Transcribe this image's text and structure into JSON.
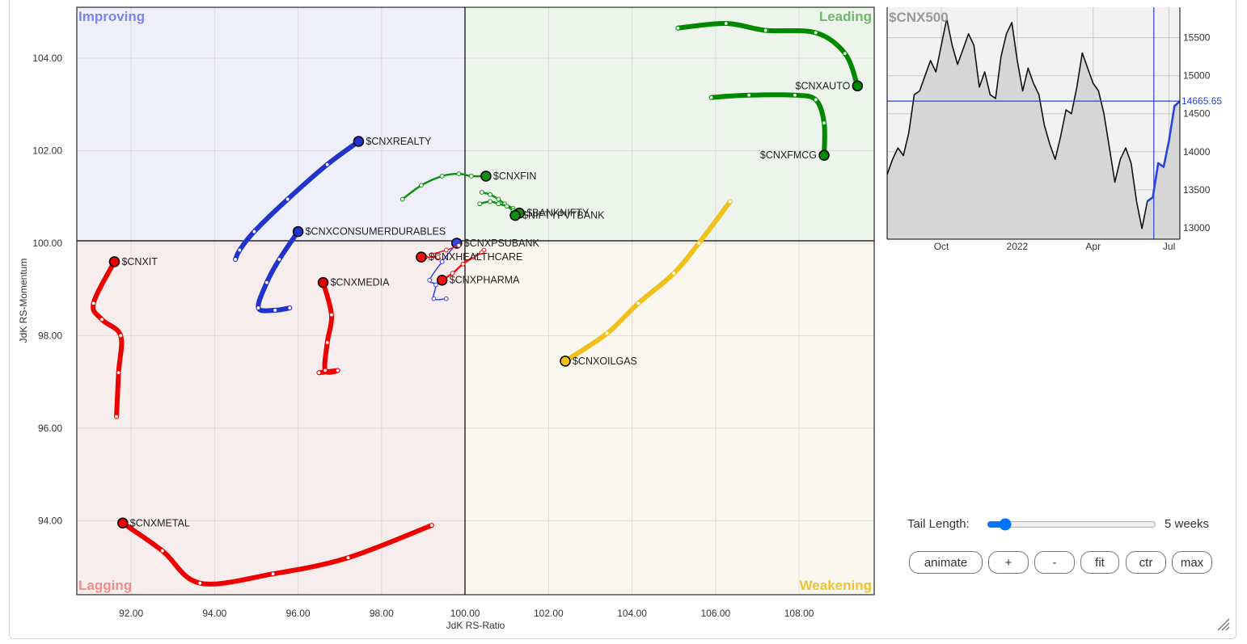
{
  "chart_data": {
    "type": "scatter",
    "subtype": "relative-rotation-graph",
    "xlabel": "JdK RS-Ratio",
    "ylabel": "JdK RS-Momentum",
    "xlim": [
      90.7,
      109.8
    ],
    "ylim": [
      92.4,
      105.1
    ],
    "xticks": [
      "92.00",
      "94.00",
      "96.00",
      "98.00",
      "100.00",
      "102.00",
      "104.00",
      "106.00",
      "108.00"
    ],
    "yticks": [
      "94.00",
      "96.00",
      "98.00",
      "100.00",
      "102.00",
      "104.00"
    ],
    "quadrants": [
      {
        "name": "Improving",
        "position": "top-left",
        "color": "#7b86e8",
        "fill": "#eeeff9"
      },
      {
        "name": "Leading",
        "position": "top-right",
        "color": "#72b86a",
        "fill": "#ecf4ec"
      },
      {
        "name": "Lagging",
        "position": "bottom-left",
        "color": "#f08c8c",
        "fill": "#f8eded"
      },
      {
        "name": "Weakening",
        "position": "bottom-right",
        "color": "#efc32e",
        "fill": "#faf7ef"
      }
    ],
    "series": [
      {
        "name": "$CNXAUTO",
        "color": "#008800",
        "width": 6,
        "label_side": "left",
        "points": [
          [
            105.1,
            104.65
          ],
          [
            106.25,
            104.75
          ],
          [
            107.2,
            104.6
          ],
          [
            108.4,
            104.55
          ],
          [
            109.1,
            104.1
          ],
          [
            109.4,
            103.4
          ]
        ]
      },
      {
        "name": "$CNXFMCG",
        "color": "#008800",
        "width": 6,
        "label_side": "left",
        "points": [
          [
            105.9,
            103.15
          ],
          [
            106.8,
            103.2
          ],
          [
            107.9,
            103.2
          ],
          [
            108.4,
            103.1
          ],
          [
            108.6,
            102.6
          ],
          [
            108.6,
            101.9
          ]
        ]
      },
      {
        "name": "$CNXFIN",
        "color": "#109010",
        "width": 2.5,
        "label_side": "right",
        "points": [
          [
            98.5,
            100.95
          ],
          [
            98.95,
            101.25
          ],
          [
            99.45,
            101.45
          ],
          [
            99.85,
            101.5
          ],
          [
            100.15,
            101.45
          ],
          [
            100.5,
            101.45
          ]
        ]
      },
      {
        "name": "$BANKNIFTY",
        "color": "#109010",
        "width": 2.5,
        "label_side": "right",
        "points": [
          [
            100.4,
            101.1
          ],
          [
            100.6,
            101.05
          ],
          [
            100.8,
            100.95
          ],
          [
            100.95,
            100.85
          ],
          [
            101.15,
            100.75
          ],
          [
            101.3,
            100.65
          ]
        ]
      },
      {
        "name": "$NIFTYPVTBANK",
        "color": "#109010",
        "width": 2.5,
        "label_side": "right",
        "points": [
          [
            100.35,
            100.85
          ],
          [
            100.6,
            100.9
          ],
          [
            100.8,
            100.85
          ],
          [
            101.0,
            100.8
          ],
          [
            101.15,
            100.7
          ],
          [
            101.2,
            100.6
          ]
        ]
      },
      {
        "name": "$CNXREALTY",
        "color": "#2233cc",
        "width": 6,
        "label_side": "right",
        "points": [
          [
            94.5,
            99.65
          ],
          [
            94.6,
            99.85
          ],
          [
            94.95,
            100.25
          ],
          [
            95.75,
            100.95
          ],
          [
            96.7,
            101.7
          ],
          [
            97.45,
            102.2
          ]
        ]
      },
      {
        "name": "$CNXCONSUMERDURABLES",
        "color": "#2233cc",
        "width": 6,
        "label_side": "right",
        "points": [
          [
            95.8,
            98.6
          ],
          [
            95.45,
            98.55
          ],
          [
            95.05,
            98.6
          ],
          [
            95.25,
            99.15
          ],
          [
            95.55,
            99.65
          ],
          [
            96.0,
            100.25
          ]
        ]
      },
      {
        "name": "$CNXPSUBANK",
        "color": "#3344dd",
        "width": 1.5,
        "label_side": "right",
        "points": [
          [
            99.55,
            98.8
          ],
          [
            99.25,
            98.8
          ],
          [
            99.3,
            99.1
          ],
          [
            99.15,
            99.2
          ],
          [
            99.45,
            99.6
          ],
          [
            99.8,
            100.0
          ]
        ]
      },
      {
        "name": "$CNXHEALTHCARE",
        "color": "#ee1111",
        "width": 1.5,
        "label_side": "right",
        "points": [
          [
            99.85,
            99.95
          ],
          [
            99.55,
            99.85
          ],
          [
            99.2,
            99.75
          ],
          [
            99.35,
            99.7
          ],
          [
            99.05,
            99.7
          ],
          [
            98.95,
            99.7
          ]
        ]
      },
      {
        "name": "$CNXPHARMA",
        "color": "#ee1111",
        "width": 2.5,
        "label_side": "right",
        "points": [
          [
            100.45,
            99.85
          ],
          [
            100.4,
            99.8
          ],
          [
            100.2,
            99.7
          ],
          [
            99.95,
            99.55
          ],
          [
            99.7,
            99.35
          ],
          [
            99.45,
            99.2
          ]
        ]
      },
      {
        "name": "$CNXIT",
        "color": "#ee0000",
        "width": 6,
        "label_side": "right",
        "points": [
          [
            91.65,
            96.25
          ],
          [
            91.7,
            97.2
          ],
          [
            91.75,
            98.0
          ],
          [
            91.3,
            98.35
          ],
          [
            91.1,
            98.7
          ],
          [
            91.6,
            99.6
          ]
        ]
      },
      {
        "name": "$CNXMEDIA",
        "color": "#ee0000",
        "width": 6,
        "label_side": "right",
        "points": [
          [
            96.5,
            97.2
          ],
          [
            96.95,
            97.25
          ],
          [
            96.65,
            97.25
          ],
          [
            96.7,
            97.85
          ],
          [
            96.8,
            98.45
          ],
          [
            96.6,
            99.15
          ]
        ]
      },
      {
        "name": "$CNXMETAL",
        "color": "#ee0000",
        "width": 6,
        "label_side": "right",
        "points": [
          [
            99.2,
            93.9
          ],
          [
            97.2,
            93.2
          ],
          [
            95.4,
            92.85
          ],
          [
            93.65,
            92.65
          ],
          [
            92.75,
            93.35
          ],
          [
            91.8,
            93.95
          ]
        ]
      },
      {
        "name": "$CNXOILGAS",
        "color": "#efc11a",
        "width": 6,
        "label_side": "right",
        "points": [
          [
            106.35,
            100.9
          ],
          [
            105.6,
            100.0
          ],
          [
            105.0,
            99.35
          ],
          [
            104.15,
            98.7
          ],
          [
            103.4,
            98.05
          ],
          [
            102.4,
            97.45
          ]
        ]
      }
    ],
    "benchmark": {
      "title": "$CNX500",
      "type": "line",
      "ylim": [
        12850,
        15900
      ],
      "yticks": [
        "13000",
        "13500",
        "14000",
        "14500",
        "15000",
        "15500"
      ],
      "xticks": [
        "Oct",
        "2022",
        "Apr",
        "Jul"
      ],
      "current_value": "14665.65",
      "values": [
        13700,
        13900,
        14050,
        13950,
        14250,
        14750,
        14800,
        15000,
        15200,
        15050,
        15400,
        15750,
        15400,
        15150,
        15350,
        15550,
        15400,
        14850,
        15050,
        14750,
        14700,
        15250,
        15550,
        15700,
        15200,
        14800,
        15100,
        14900,
        14750,
        14350,
        14100,
        13900,
        14200,
        14550,
        14500,
        14850,
        15300,
        15100,
        14900,
        14800,
        14500,
        14050,
        13600,
        13900,
        14050,
        13850,
        13350,
        12990,
        13350,
        13400,
        13850,
        13800,
        14150,
        14600,
        14665.65
      ],
      "highlight_from_index": 48
    }
  },
  "controls": {
    "tail_label": "Tail Length:",
    "tail_value": "5 weeks",
    "tail_weeks": 5,
    "tail_max_weeks": 52,
    "buttons": {
      "animate": "animate",
      "plus": "+",
      "minus": "-",
      "fit": "fit",
      "ctr": "ctr",
      "max": "max"
    }
  }
}
